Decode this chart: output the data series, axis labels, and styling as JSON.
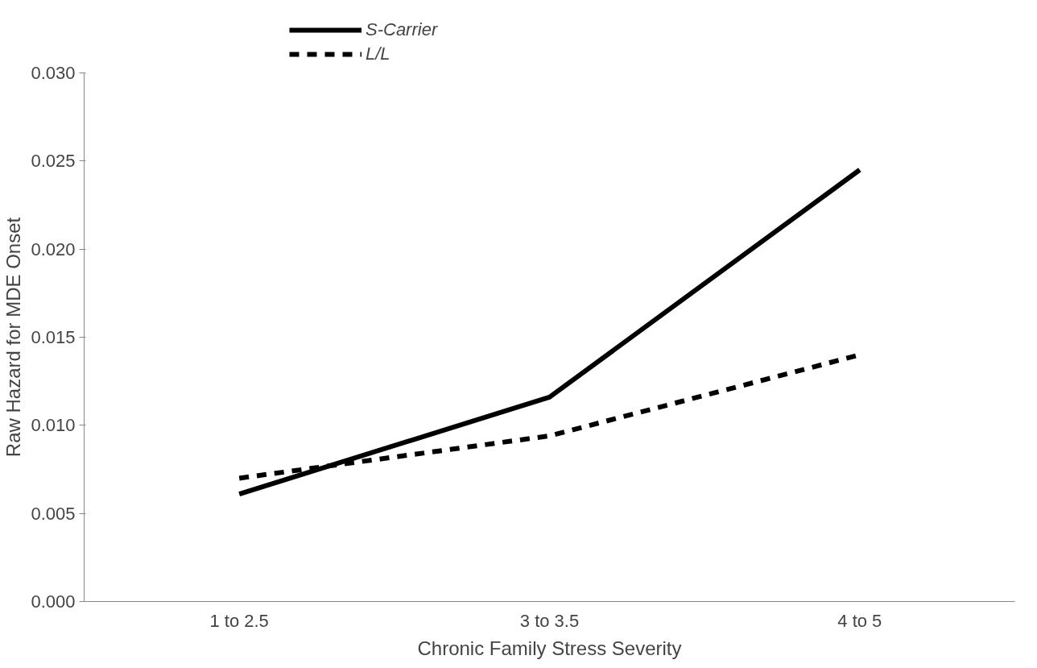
{
  "chart_data": {
    "type": "line",
    "xlabel": "Chronic Family Stress Severity",
    "ylabel": "Raw Hazard for MDE Onset",
    "categories": [
      "1 to 2.5",
      "3 to 3.5",
      "4 to 5"
    ],
    "ylim": [
      0,
      0.03
    ],
    "yticks": [
      {
        "value": 0,
        "label": "0.000"
      },
      {
        "value": 0.005,
        "label": "0.005"
      },
      {
        "value": 0.01,
        "label": "0.010"
      },
      {
        "value": 0.015,
        "label": "0.015"
      },
      {
        "value": 0.02,
        "label": "0.020"
      },
      {
        "value": 0.025,
        "label": "0.025"
      },
      {
        "value": 0.03,
        "label": "0.030"
      }
    ],
    "grid": false,
    "legend": "top left",
    "marker": "none",
    "series": [
      {
        "name": "S-Carrier",
        "color": "#000000",
        "line_style": "solid",
        "values": [
          0.0061,
          0.0116,
          0.0245
        ]
      },
      {
        "name": "L/L",
        "color": "#000000",
        "line_style": "dashed",
        "values": [
          0.007,
          0.0094,
          0.014
        ]
      }
    ]
  }
}
